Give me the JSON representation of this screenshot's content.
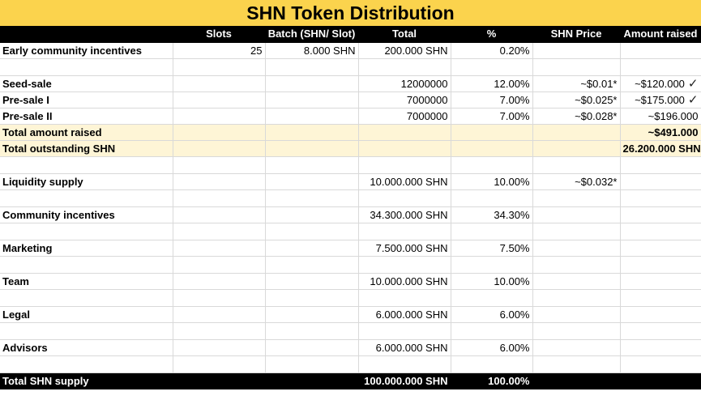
{
  "title": "SHN Token Distribution",
  "headers": [
    "",
    "Slots",
    "Batch (SHN/ Slot)",
    "Total",
    "%",
    "SHN Price",
    "Amount raised"
  ],
  "rows": [
    {
      "label": "Early community incentives",
      "slots": "25",
      "batch": "8.000 SHN",
      "total": "200.000 SHN",
      "pct": "0.20%",
      "price": "",
      "raised": "",
      "check": false
    },
    {
      "label": "Seed-sale",
      "slots": "",
      "batch": "",
      "total": "12000000",
      "pct": "12.00%",
      "price": "~$0.01*",
      "raised": "~$120.000",
      "check": true
    },
    {
      "label": "Pre-sale I",
      "slots": "",
      "batch": "",
      "total": "7000000",
      "pct": "7.00%",
      "price": "~$0.025*",
      "raised": "~$175.000",
      "check": true
    },
    {
      "label": "Pre-sale II",
      "slots": "",
      "batch": "",
      "total": "7000000",
      "pct": "7.00%",
      "price": "~$0.028*",
      "raised": "~$196.000",
      "check": false
    },
    {
      "label": "Total amount raised",
      "raised": "~$491.000"
    },
    {
      "label": "Total outstanding SHN",
      "raised": "26.200.000 SHN"
    },
    {
      "label": "Liquidity supply",
      "total": "10.000.000 SHN",
      "pct": "10.00%",
      "price": "~$0.032*"
    },
    {
      "label": "Community incentives",
      "total": "34.300.000 SHN",
      "pct": "34.30%"
    },
    {
      "label": "Marketing",
      "total": "7.500.000 SHN",
      "pct": "7.50%"
    },
    {
      "label": "Team",
      "total": "10.000.000 SHN",
      "pct": "10.00%"
    },
    {
      "label": "Legal",
      "total": "6.000.000 SHN",
      "pct": "6.00%"
    },
    {
      "label": "Advisors",
      "total": "6.000.000 SHN",
      "pct": "6.00%"
    },
    {
      "label": "Total SHN supply",
      "total": "100.000.000 SHN",
      "pct": "100.00%"
    }
  ],
  "check_glyph": "✓",
  "colors": {
    "title_bg": "#fbd34d",
    "header_bg": "#000000",
    "highlight_bg": "#fef5d6"
  }
}
